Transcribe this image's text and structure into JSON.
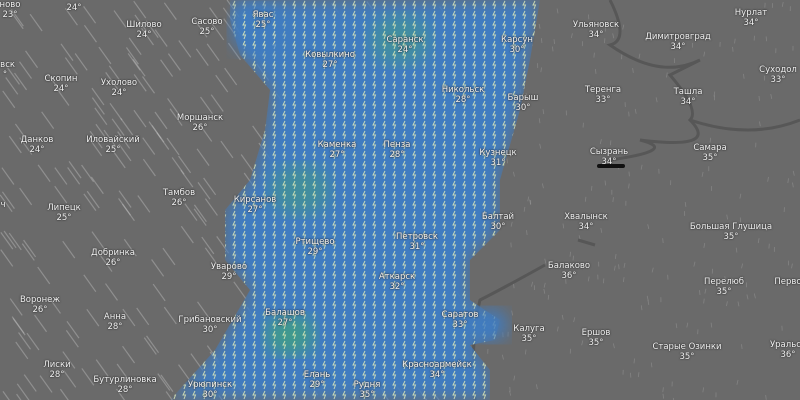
{
  "map": {
    "layer": "precipitation / thunderstorms",
    "colors": {
      "background": "#6a6a6a",
      "rain": "#3f7cc0",
      "heavy_rain": "#3fae6a",
      "river": "#555555"
    },
    "icons": [
      "thunderstorm-icon",
      "wind-streak"
    ]
  },
  "cities": [
    {
      "name": "ново",
      "temp": "23°"
    },
    {
      "name": "",
      "temp": "24°"
    },
    {
      "name": "Шилово",
      "temp": "24°"
    },
    {
      "name": "Сасово",
      "temp": "25°"
    },
    {
      "name": "Явас",
      "temp": "25°"
    },
    {
      "name": "Саранск",
      "temp": "24°"
    },
    {
      "name": "Карсун",
      "temp": "30°"
    },
    {
      "name": "Ульяновск",
      "temp": "34°"
    },
    {
      "name": "Димитровград",
      "temp": "34°"
    },
    {
      "name": "Нурлат",
      "temp": "34°"
    },
    {
      "name": "Суходол",
      "temp": "33°"
    },
    {
      "name": "овск",
      "temp": "°"
    },
    {
      "name": "Скопин",
      "temp": "24°"
    },
    {
      "name": "Ухолово",
      "temp": "24°"
    },
    {
      "name": "Ковылкино",
      "temp": "27°"
    },
    {
      "name": "Никольск",
      "temp": "28°"
    },
    {
      "name": "Барыш",
      "temp": "30°"
    },
    {
      "name": "Теренга",
      "temp": "33°"
    },
    {
      "name": "Ташла",
      "temp": "34°"
    },
    {
      "name": "Моршанск",
      "temp": "26°"
    },
    {
      "name": "Данков",
      "temp": "24°"
    },
    {
      "name": "Иловайский",
      "temp": "25°"
    },
    {
      "name": "Каменка",
      "temp": "27°"
    },
    {
      "name": "Пенза",
      "temp": "28°"
    },
    {
      "name": "Кузнецк",
      "temp": "31°"
    },
    {
      "name": "Сызрань",
      "temp": "34°"
    },
    {
      "name": "Самара",
      "temp": "35°"
    },
    {
      "name": "Тамбов",
      "temp": "26°"
    },
    {
      "name": "Кирсанов",
      "temp": "27°"
    },
    {
      "name": "ч",
      "temp": ""
    },
    {
      "name": "Липецк",
      "temp": "25°"
    },
    {
      "name": "Балтай",
      "temp": "30°"
    },
    {
      "name": "Хвалынск",
      "temp": "34°"
    },
    {
      "name": "Большая Глушица",
      "temp": "35°"
    },
    {
      "name": "Ртищево",
      "temp": "29°"
    },
    {
      "name": "Петровск",
      "temp": "31°"
    },
    {
      "name": "Добринка",
      "temp": "26°"
    },
    {
      "name": "Уварово",
      "temp": "29°"
    },
    {
      "name": "Аткарск",
      "temp": "32°"
    },
    {
      "name": "Балаково",
      "temp": "36°"
    },
    {
      "name": "Перелюб",
      "temp": "35°"
    },
    {
      "name": "Перво",
      "temp": ""
    },
    {
      "name": "Воронеж",
      "temp": "26°"
    },
    {
      "name": "Анна",
      "temp": "28°"
    },
    {
      "name": "Грибановский",
      "temp": "30°"
    },
    {
      "name": "Балашов",
      "temp": "27°"
    },
    {
      "name": "Саратов",
      "temp": "33°"
    },
    {
      "name": "Калуга",
      "temp": "35°"
    },
    {
      "name": "Ершов",
      "temp": "35°"
    },
    {
      "name": "Старые Озинки",
      "temp": "35°"
    },
    {
      "name": "Уральск",
      "temp": "36°"
    },
    {
      "name": "Лиски",
      "temp": "28°"
    },
    {
      "name": "Бутурлиновка",
      "temp": "28°"
    },
    {
      "name": "Урюпинск",
      "temp": "30°"
    },
    {
      "name": "Елань",
      "temp": "29°"
    },
    {
      "name": "Рудня",
      "temp": "35°"
    },
    {
      "name": "Красноармейск",
      "temp": "34°"
    }
  ]
}
